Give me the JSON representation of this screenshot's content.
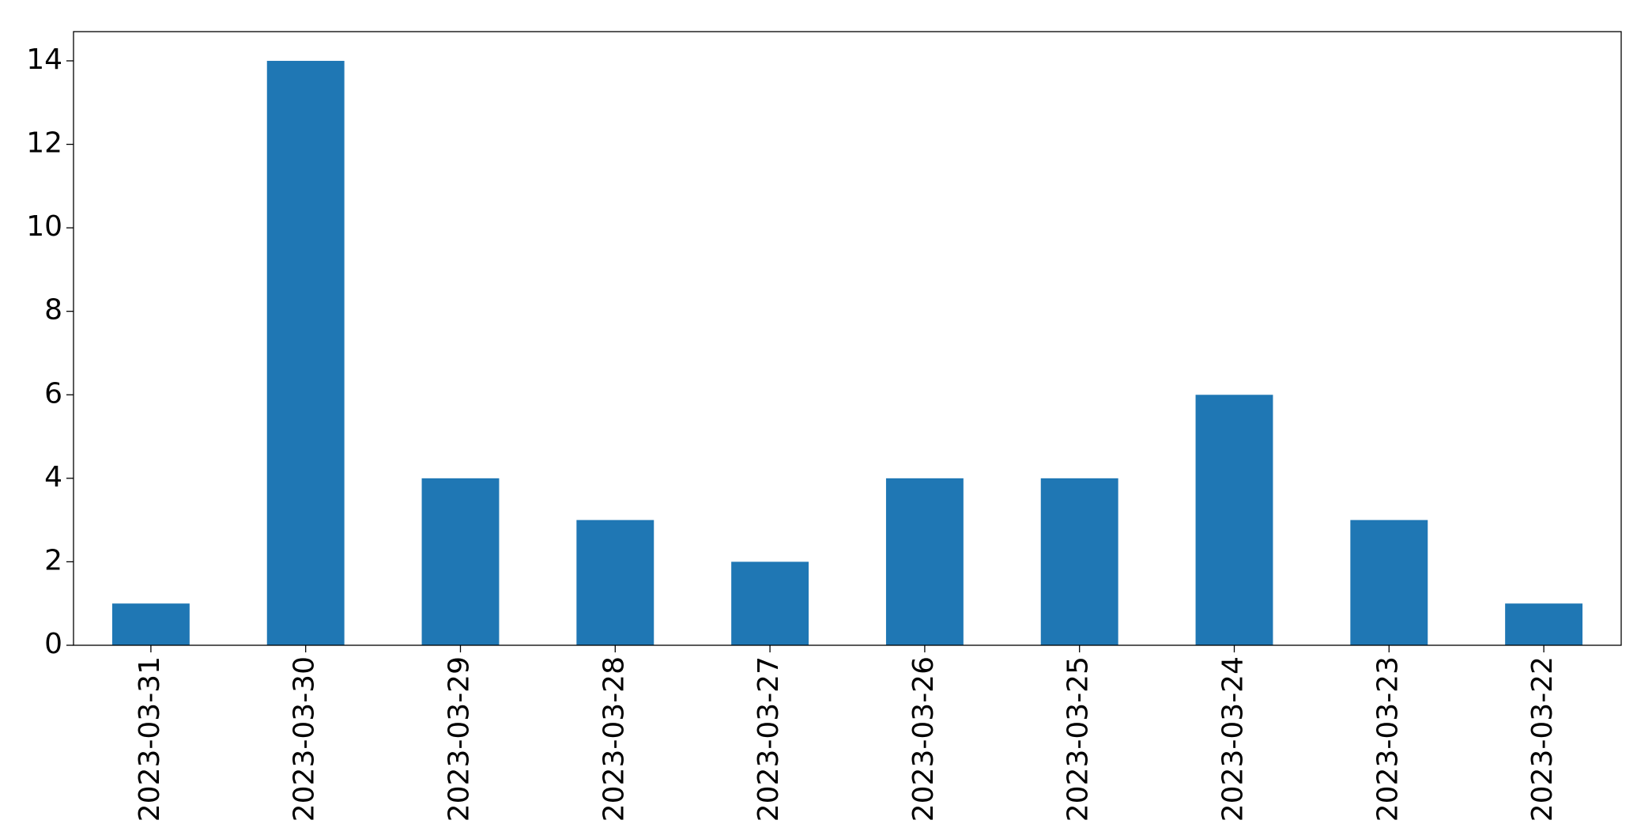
{
  "chart_data": {
    "type": "bar",
    "categories": [
      "2023-03-31",
      "2023-03-30",
      "2023-03-29",
      "2023-03-28",
      "2023-03-27",
      "2023-03-26",
      "2023-03-25",
      "2023-03-24",
      "2023-03-23",
      "2023-03-22"
    ],
    "values": [
      1,
      14,
      4,
      3,
      2,
      4,
      4,
      6,
      3,
      1
    ],
    "color": "#1f77b4",
    "ylim": [
      0,
      14.7
    ],
    "yticks": [
      0,
      2,
      4,
      6,
      8,
      10,
      12,
      14
    ],
    "grid": false
  }
}
